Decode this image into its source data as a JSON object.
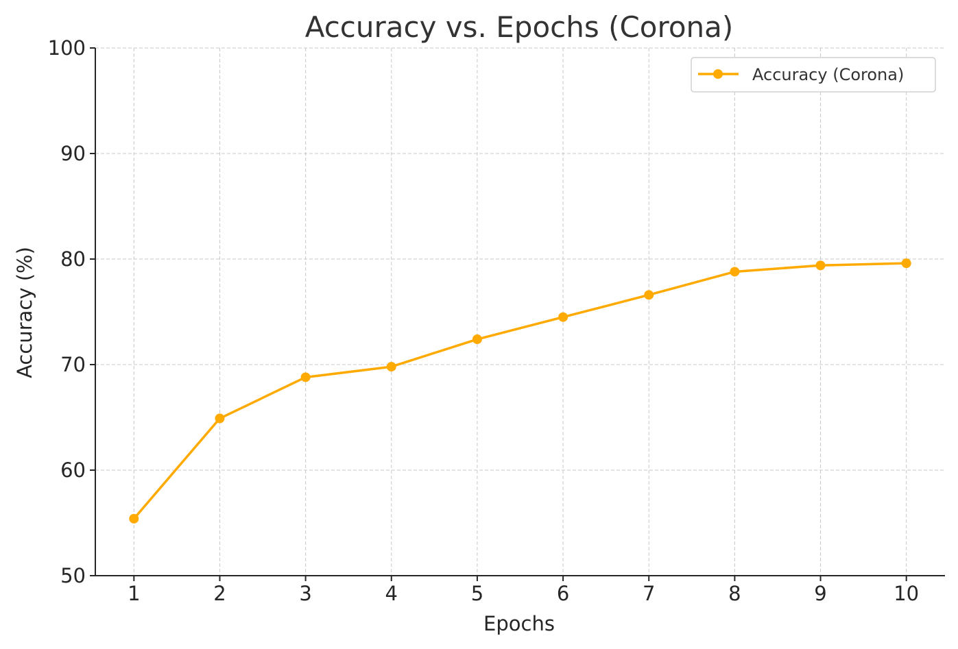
{
  "chart_data": {
    "type": "line",
    "title": "Accuracy vs. Epochs (Corona)",
    "xlabel": "Epochs",
    "ylabel": "Accuracy (%)",
    "x": [
      1,
      2,
      3,
      4,
      5,
      6,
      7,
      8,
      9,
      10
    ],
    "x_tick_labels": [
      "1",
      "2",
      "3",
      "4",
      "5",
      "6",
      "7",
      "8",
      "9",
      "10"
    ],
    "y_tick_values": [
      50,
      60,
      70,
      80,
      90,
      100
    ],
    "y_tick_labels": [
      "50",
      "60",
      "70",
      "80",
      "90",
      "100"
    ],
    "ylim": [
      50,
      100
    ],
    "xlim": [
      0.55,
      10.45
    ],
    "grid": true,
    "legend_position": "top-right",
    "series": [
      {
        "name": "Accuracy (Corona)",
        "color": "#FFAA00",
        "marker": "circle",
        "values": [
          55.4,
          64.9,
          68.8,
          69.8,
          72.4,
          74.5,
          76.6,
          78.8,
          79.4,
          79.6
        ]
      }
    ]
  }
}
